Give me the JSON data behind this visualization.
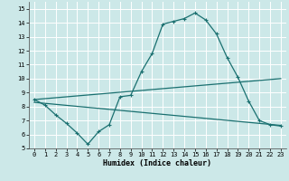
{
  "title": "",
  "xlabel": "Humidex (Indice chaleur)",
  "xlim": [
    -0.5,
    23.5
  ],
  "ylim": [
    5,
    15.5
  ],
  "yticks": [
    5,
    6,
    7,
    8,
    9,
    10,
    11,
    12,
    13,
    14,
    15
  ],
  "xticks": [
    0,
    1,
    2,
    3,
    4,
    5,
    6,
    7,
    8,
    9,
    10,
    11,
    12,
    13,
    14,
    15,
    16,
    17,
    18,
    19,
    20,
    21,
    22,
    23
  ],
  "bg_color": "#cce8e8",
  "grid_color": "#b0d4d4",
  "line_color": "#1a7070",
  "line1_x": [
    0,
    1,
    2,
    3,
    4,
    5,
    6,
    7,
    8,
    9,
    10,
    11,
    12,
    13,
    14,
    15,
    16,
    17,
    18,
    19,
    20,
    21,
    22,
    23
  ],
  "line1_y": [
    8.5,
    8.1,
    7.4,
    6.8,
    6.1,
    5.3,
    6.2,
    6.7,
    8.7,
    8.8,
    10.5,
    11.8,
    13.9,
    14.1,
    14.3,
    14.7,
    14.2,
    13.2,
    11.5,
    10.1,
    8.4,
    7.0,
    6.7,
    6.6
  ],
  "line2_x": [
    0,
    23
  ],
  "line2_y": [
    8.5,
    10.0
  ],
  "line3_x": [
    0,
    23
  ],
  "line3_y": [
    8.3,
    6.65
  ],
  "xlabel_fontsize": 6.0,
  "tick_fontsize": 5.0
}
